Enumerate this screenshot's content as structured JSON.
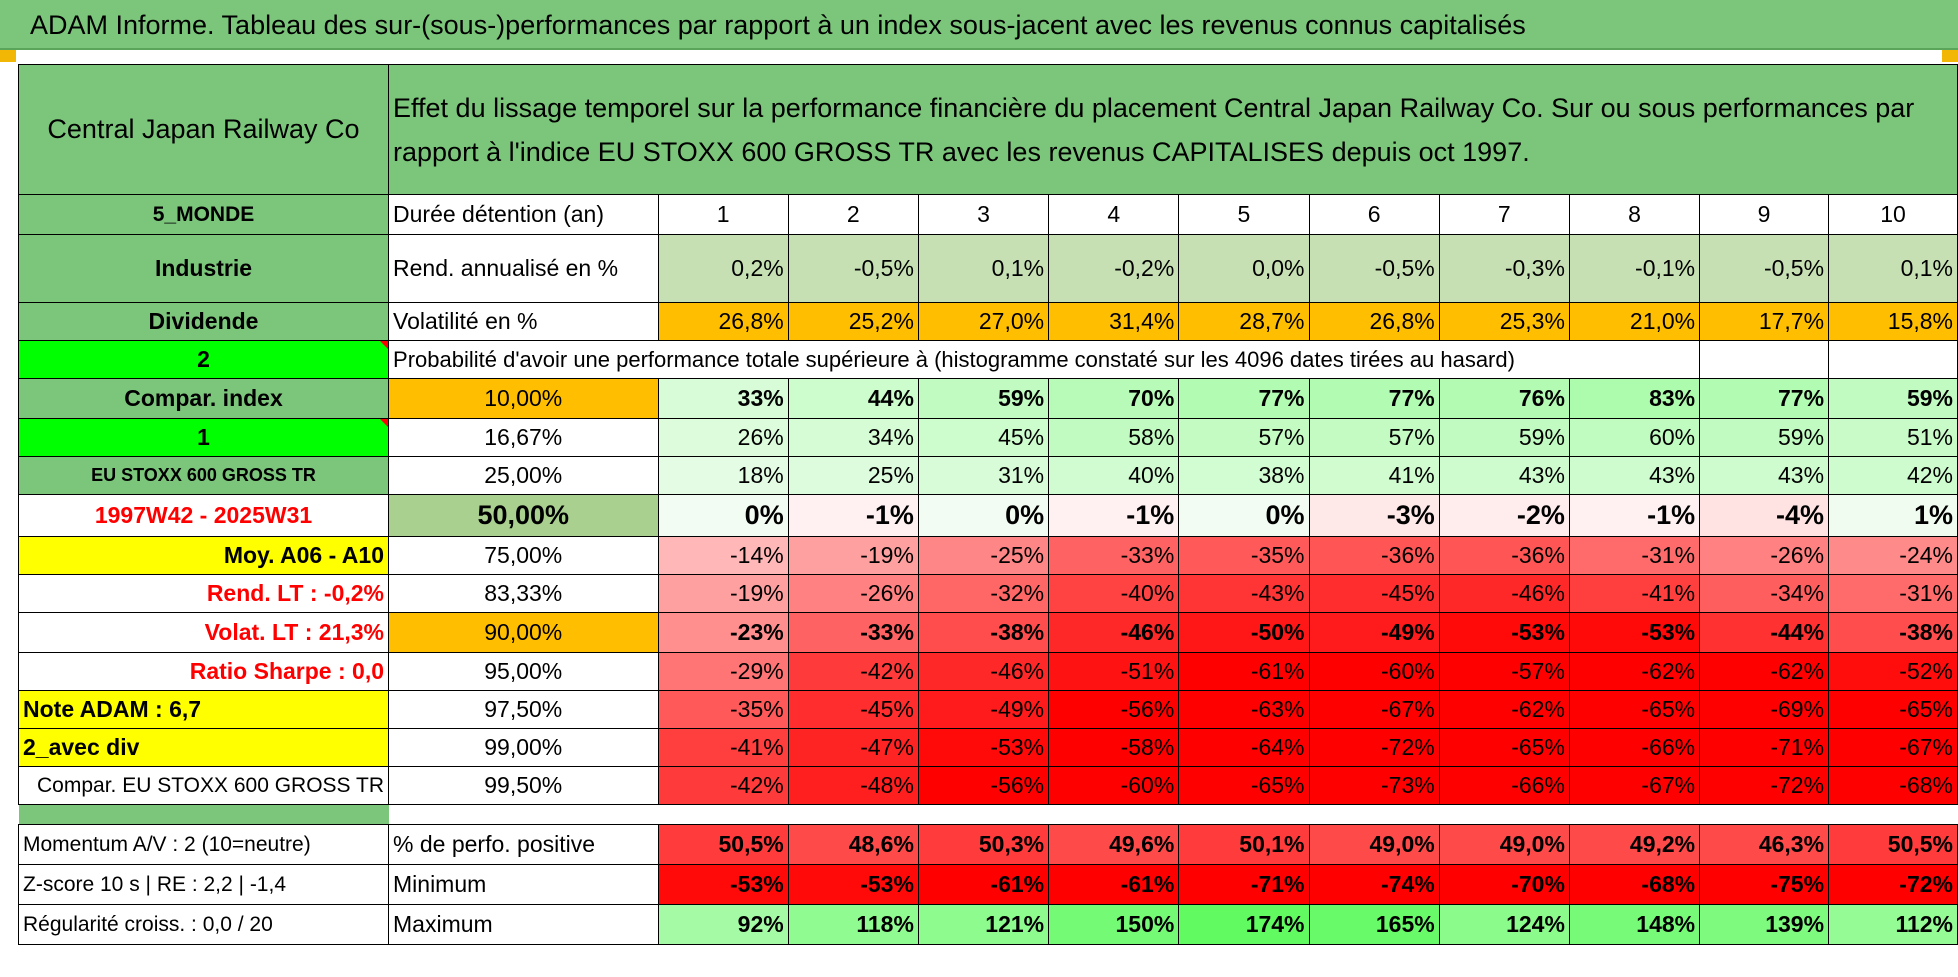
{
  "title": "ADAM Informe. Tableau des sur-(sous-)performances par rapport à un index sous-jacent avec les revenus connus capitalisés",
  "header": {
    "company": "Central Japan Railway Co",
    "description": "Effet du lissage temporel sur la performance financière du placement Central Japan Railway Co. Sur ou sous performances par rapport à l'indice EU STOXX 600 GROSS TR avec les revenus CAPITALISES depuis oct 1997."
  },
  "left_labels": {
    "region": "5_MONDE",
    "sector": "Industrie",
    "dividend": "Dividende",
    "selector1": "2",
    "compar_index": "Compar. index",
    "selector2": "1",
    "index_name": "EU STOXX 600 GROSS TR",
    "period": "1997W42 - 2025W31",
    "moy": "Moy. A06 - A10",
    "rend_lt": "Rend. LT :    -0,2%",
    "volat_lt": "Volat. LT :    21,3%",
    "sharpe": "Ratio Sharpe :     0,0",
    "note": "Note ADAM : 6,7",
    "avec_div": "2_avec div",
    "compar_eu": "Compar. EU STOXX 600 GROSS TR",
    "momentum": "Momentum A/V : 2 (10=neutre)",
    "zscore": "Z-score 10 s | RE : 2,2 | -1,4",
    "regularite": "Régularité croiss. : 0,0 / 20"
  },
  "rows": {
    "duree_label": "Durée détention (an)",
    "years": [
      "1",
      "2",
      "3",
      "4",
      "5",
      "6",
      "7",
      "8",
      "9",
      "10"
    ],
    "rend_label": "Rend. annualisé en %",
    "rend": [
      "0,2%",
      "-0,5%",
      "0,1%",
      "-0,2%",
      "0,0%",
      "-0,5%",
      "-0,3%",
      "-0,1%",
      "-0,5%",
      "0,1%"
    ],
    "vol_label": "Volatilité en %",
    "vol": [
      "26,8%",
      "25,2%",
      "27,0%",
      "31,4%",
      "28,7%",
      "26,8%",
      "25,3%",
      "21,0%",
      "17,7%",
      "15,8%"
    ],
    "prob_label": "Probabilité d'avoir une performance totale supérieure à (histogramme constaté sur les 4096 dates tirées au hasard)"
  },
  "percentiles": [
    {
      "p": "10,00%",
      "v": [
        "33%",
        "44%",
        "59%",
        "70%",
        "77%",
        "77%",
        "76%",
        "83%",
        "77%",
        "59%"
      ]
    },
    {
      "p": "16,67%",
      "v": [
        "26%",
        "34%",
        "45%",
        "58%",
        "57%",
        "57%",
        "59%",
        "60%",
        "59%",
        "51%"
      ]
    },
    {
      "p": "25,00%",
      "v": [
        "18%",
        "25%",
        "31%",
        "40%",
        "38%",
        "41%",
        "43%",
        "43%",
        "43%",
        "42%"
      ]
    },
    {
      "p": "50,00%",
      "v": [
        "0%",
        "-1%",
        "0%",
        "-1%",
        "0%",
        "-3%",
        "-2%",
        "-1%",
        "-4%",
        "1%"
      ]
    },
    {
      "p": "75,00%",
      "v": [
        "-14%",
        "-19%",
        "-25%",
        "-33%",
        "-35%",
        "-36%",
        "-36%",
        "-31%",
        "-26%",
        "-24%"
      ]
    },
    {
      "p": "83,33%",
      "v": [
        "-19%",
        "-26%",
        "-32%",
        "-40%",
        "-43%",
        "-45%",
        "-46%",
        "-41%",
        "-34%",
        "-31%"
      ]
    },
    {
      "p": "90,00%",
      "v": [
        "-23%",
        "-33%",
        "-38%",
        "-46%",
        "-50%",
        "-49%",
        "-53%",
        "-53%",
        "-44%",
        "-38%"
      ]
    },
    {
      "p": "95,00%",
      "v": [
        "-29%",
        "-42%",
        "-46%",
        "-51%",
        "-61%",
        "-60%",
        "-57%",
        "-62%",
        "-62%",
        "-52%"
      ]
    },
    {
      "p": "97,50%",
      "v": [
        "-35%",
        "-45%",
        "-49%",
        "-56%",
        "-63%",
        "-67%",
        "-62%",
        "-65%",
        "-69%",
        "-65%"
      ]
    },
    {
      "p": "99,00%",
      "v": [
        "-41%",
        "-47%",
        "-53%",
        "-58%",
        "-64%",
        "-72%",
        "-65%",
        "-66%",
        "-71%",
        "-67%"
      ]
    },
    {
      "p": "99,50%",
      "v": [
        "-42%",
        "-48%",
        "-56%",
        "-60%",
        "-65%",
        "-73%",
        "-66%",
        "-67%",
        "-72%",
        "-68%"
      ]
    }
  ],
  "stats": [
    {
      "label": "% de perfo. positive",
      "v": [
        "50,5%",
        "48,6%",
        "50,3%",
        "49,6%",
        "50,1%",
        "49,0%",
        "49,0%",
        "49,2%",
        "46,3%",
        "50,5%"
      ]
    },
    {
      "label": "Minimum",
      "v": [
        "-53%",
        "-53%",
        "-61%",
        "-61%",
        "-71%",
        "-74%",
        "-70%",
        "-68%",
        "-75%",
        "-72%"
      ]
    },
    {
      "label": "Maximum",
      "v": [
        "92%",
        "118%",
        "121%",
        "150%",
        "174%",
        "165%",
        "124%",
        "148%",
        "139%",
        "112%"
      ]
    }
  ],
  "colors": {
    "header_green": "#7cc67c",
    "bright_green": "#00ff00",
    "yellow": "#ffff00",
    "orange": "#ffbf00",
    "light_green": "#c6e0b4",
    "red": "#ff0000"
  }
}
